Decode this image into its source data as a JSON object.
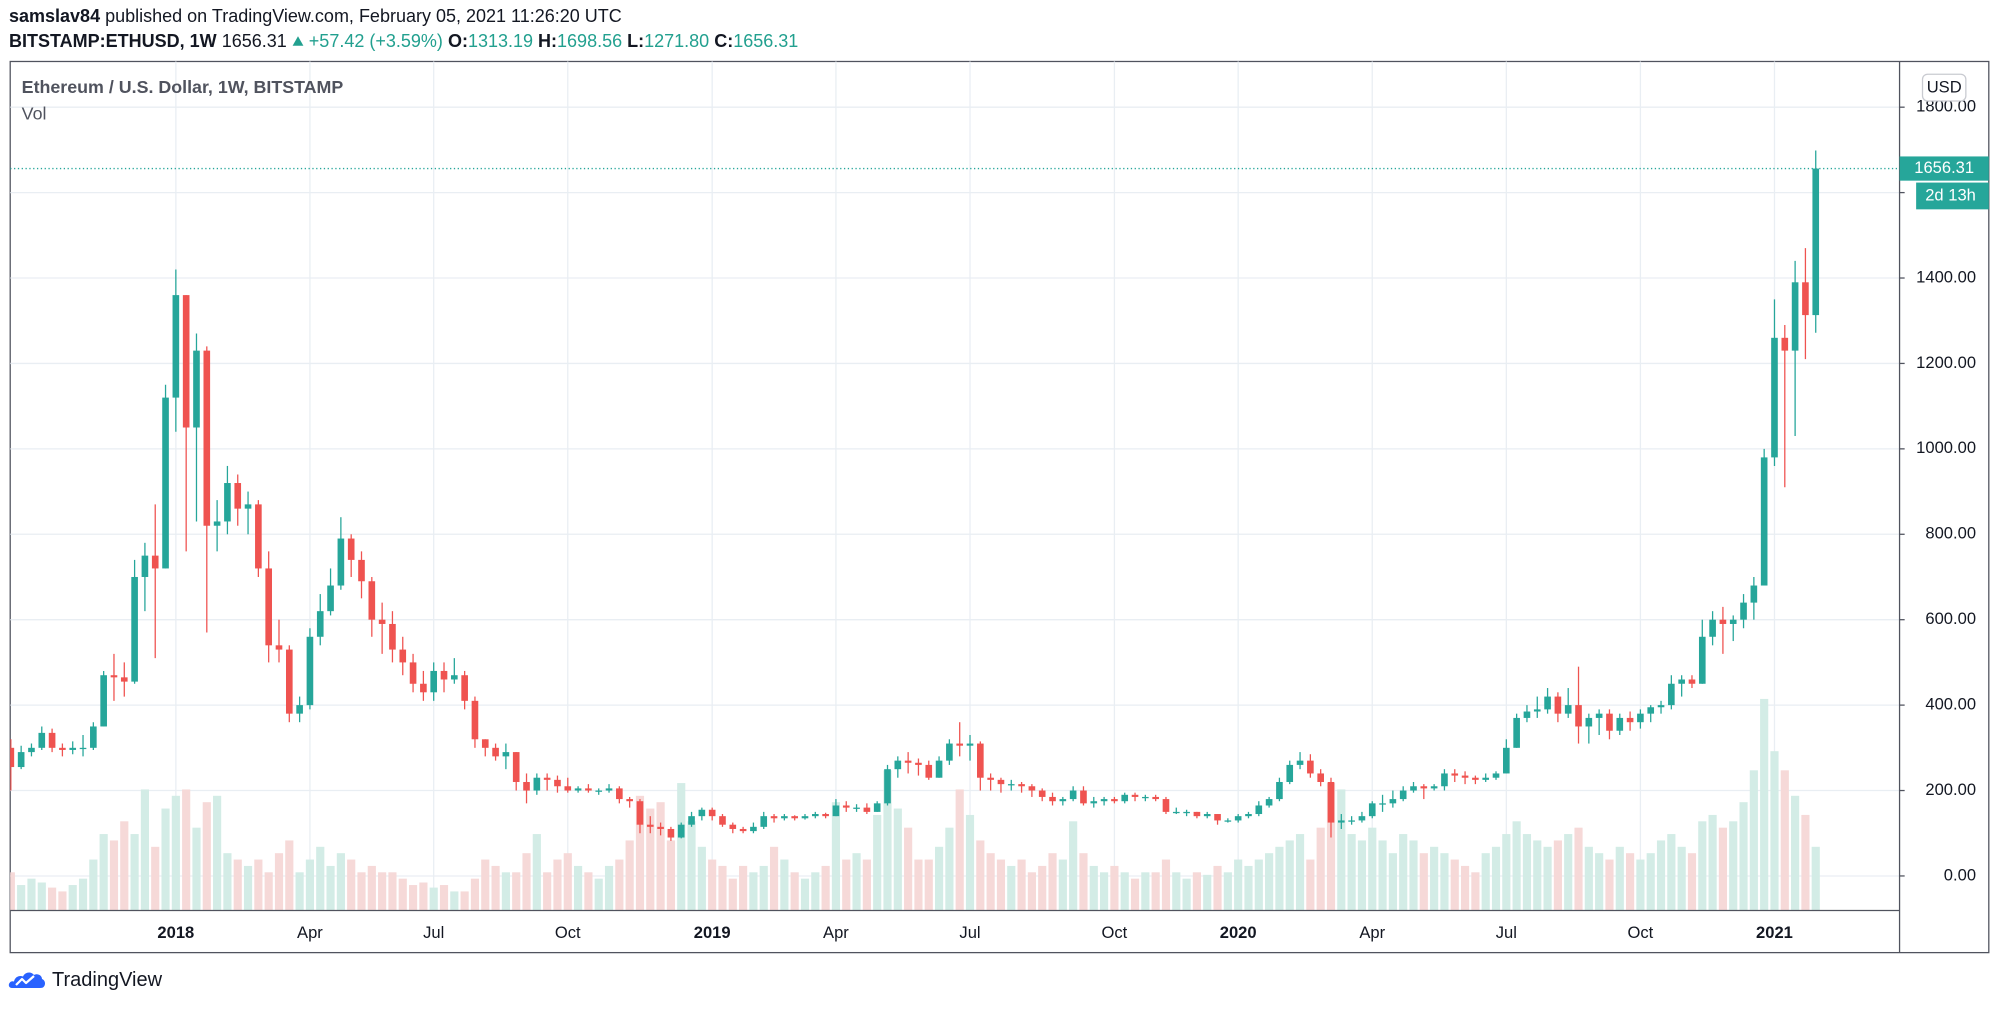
{
  "header": {
    "author": "samslav84",
    "published": "published on TradingView.com, February 05, 2021 11:26:20 UTC",
    "symbol": "BITSTAMP:ETHUSD, 1W",
    "last": "1656.31",
    "change": "+57.42",
    "change_pct": "(+3.59%)",
    "o_key": "O:",
    "o": "1313.19",
    "h_key": "H:",
    "h": "1698.56",
    "l_key": "L:",
    "l": "1271.80",
    "c_key": "C:",
    "c": "1656.31"
  },
  "footer": {
    "brand": "TradingView"
  },
  "chart_data": {
    "type": "candlestick",
    "title": "Ethereum / U.S. Dollar, 1W, BITSTAMP",
    "volume_label": "Vol",
    "currency": "USD",
    "last_price_label": "1656.31",
    "countdown": "2d 13h",
    "up_color": "#26a69a",
    "down_color": "#ef5350",
    "volume_up_color": "#d3ece6",
    "volume_down_color": "#f6d9d8",
    "grid": true,
    "ylim": [
      -81,
      1907
    ],
    "yticks": [
      {
        "value": 0,
        "label": "0.00"
      },
      {
        "value": 200,
        "label": "200.00"
      },
      {
        "value": 400,
        "label": "400.00"
      },
      {
        "value": 600,
        "label": "600.00"
      },
      {
        "value": 800,
        "label": "800.00"
      },
      {
        "value": 1000,
        "label": "1000.00"
      },
      {
        "value": 1200,
        "label": "1200.00"
      },
      {
        "value": 1400,
        "label": "1400.00"
      },
      {
        "value": 1600,
        "label": "1600.00"
      },
      {
        "value": 1800,
        "label": "1800.00"
      }
    ],
    "categories": [
      null,
      null,
      null,
      null,
      null,
      null,
      null,
      null,
      null,
      null,
      null,
      null,
      null,
      null,
      null,
      null,
      "2018",
      null,
      null,
      null,
      null,
      null,
      null,
      null,
      null,
      null,
      null,
      null,
      null,
      "Apr",
      null,
      null,
      null,
      null,
      null,
      null,
      null,
      null,
      null,
      null,
      null,
      "Jul",
      null,
      null,
      null,
      null,
      null,
      null,
      null,
      null,
      null,
      null,
      null,
      null,
      "Oct",
      null,
      null,
      null,
      null,
      null,
      null,
      null,
      null,
      null,
      null,
      null,
      null,
      null,
      "2019",
      null,
      null,
      null,
      null,
      null,
      null,
      null,
      null,
      null,
      null,
      null,
      "Apr",
      null,
      null,
      null,
      null,
      null,
      null,
      null,
      null,
      null,
      null,
      null,
      null,
      "Jul",
      null,
      null,
      null,
      null,
      null,
      null,
      null,
      null,
      null,
      null,
      null,
      null,
      null,
      "Oct",
      null,
      null,
      null,
      null,
      null,
      null,
      null,
      null,
      null,
      null,
      null,
      "2020",
      null,
      null,
      null,
      null,
      null,
      null,
      null,
      null,
      null,
      null,
      null,
      null,
      "Apr",
      null,
      null,
      null,
      null,
      null,
      null,
      null,
      null,
      null,
      null,
      null,
      null,
      "Jul",
      null,
      null,
      null,
      null,
      null,
      null,
      null,
      null,
      null,
      null,
      null,
      null,
      "Oct",
      null,
      null,
      null,
      null,
      null,
      null,
      null,
      null,
      null,
      null,
      null,
      null,
      "2021",
      null,
      null,
      null,
      null
    ],
    "ohlc": [
      [
        300,
        320,
        200,
        255
      ],
      [
        255,
        305,
        250,
        290
      ],
      [
        290,
        310,
        280,
        300
      ],
      [
        300,
        350,
        295,
        335
      ],
      [
        335,
        345,
        290,
        300
      ],
      [
        300,
        310,
        280,
        295
      ],
      [
        295,
        315,
        285,
        300
      ],
      [
        300,
        330,
        280,
        300
      ],
      [
        300,
        360,
        295,
        350
      ],
      [
        350,
        480,
        350,
        470
      ],
      [
        470,
        520,
        410,
        465
      ],
      [
        465,
        500,
        420,
        455
      ],
      [
        455,
        740,
        450,
        700
      ],
      [
        700,
        780,
        620,
        750
      ],
      [
        750,
        870,
        510,
        720
      ],
      [
        720,
        1150,
        720,
        1120
      ],
      [
        1120,
        1420,
        1040,
        1360
      ],
      [
        1360,
        1360,
        760,
        1050
      ],
      [
        1050,
        1270,
        830,
        1230
      ],
      [
        1230,
        1240,
        570,
        820
      ],
      [
        820,
        880,
        760,
        830
      ],
      [
        830,
        960,
        800,
        920
      ],
      [
        920,
        940,
        820,
        860
      ],
      [
        860,
        900,
        800,
        870
      ],
      [
        870,
        880,
        700,
        720
      ],
      [
        720,
        760,
        500,
        540
      ],
      [
        540,
        600,
        500,
        530
      ],
      [
        530,
        540,
        360,
        380
      ],
      [
        380,
        420,
        360,
        400
      ],
      [
        400,
        580,
        390,
        560
      ],
      [
        560,
        660,
        540,
        620
      ],
      [
        620,
        720,
        610,
        680
      ],
      [
        680,
        840,
        670,
        790
      ],
      [
        790,
        800,
        700,
        740
      ],
      [
        740,
        760,
        650,
        690
      ],
      [
        690,
        700,
        560,
        600
      ],
      [
        600,
        640,
        520,
        590
      ],
      [
        590,
        620,
        500,
        530
      ],
      [
        530,
        560,
        470,
        500
      ],
      [
        500,
        520,
        430,
        450
      ],
      [
        450,
        480,
        410,
        430
      ],
      [
        430,
        500,
        410,
        480
      ],
      [
        480,
        500,
        430,
        460
      ],
      [
        460,
        510,
        450,
        470
      ],
      [
        470,
        480,
        390,
        410
      ],
      [
        410,
        420,
        300,
        320
      ],
      [
        320,
        320,
        280,
        300
      ],
      [
        300,
        310,
        270,
        280
      ],
      [
        280,
        310,
        250,
        290
      ],
      [
        290,
        290,
        200,
        220
      ],
      [
        220,
        240,
        170,
        200
      ],
      [
        200,
        240,
        190,
        230
      ],
      [
        230,
        240,
        200,
        225
      ],
      [
        225,
        235,
        195,
        210
      ],
      [
        210,
        230,
        195,
        200
      ],
      [
        200,
        210,
        195,
        205
      ],
      [
        205,
        215,
        195,
        200
      ],
      [
        200,
        205,
        190,
        200
      ],
      [
        200,
        215,
        195,
        205
      ],
      [
        205,
        210,
        170,
        180
      ],
      [
        180,
        185,
        160,
        175
      ],
      [
        175,
        180,
        100,
        120
      ],
      [
        120,
        140,
        100,
        115
      ],
      [
        115,
        125,
        95,
        110
      ],
      [
        110,
        115,
        82,
        90
      ],
      [
        90,
        125,
        88,
        120
      ],
      [
        120,
        150,
        115,
        140
      ],
      [
        140,
        160,
        130,
        155
      ],
      [
        155,
        160,
        130,
        140
      ],
      [
        140,
        145,
        115,
        120
      ],
      [
        120,
        125,
        100,
        110
      ],
      [
        110,
        115,
        100,
        105
      ],
      [
        105,
        125,
        100,
        115
      ],
      [
        115,
        150,
        110,
        140
      ],
      [
        140,
        145,
        125,
        135
      ],
      [
        135,
        145,
        130,
        140
      ],
      [
        140,
        142,
        130,
        135
      ],
      [
        135,
        145,
        132,
        140
      ],
      [
        140,
        150,
        135,
        145
      ],
      [
        145,
        148,
        135,
        140
      ],
      [
        140,
        180,
        140,
        165
      ],
      [
        165,
        175,
        150,
        160
      ],
      [
        160,
        168,
        150,
        160
      ],
      [
        160,
        170,
        145,
        150
      ],
      [
        150,
        175,
        150,
        170
      ],
      [
        170,
        260,
        165,
        250
      ],
      [
        250,
        280,
        230,
        270
      ],
      [
        270,
        290,
        240,
        265
      ],
      [
        265,
        275,
        235,
        260
      ],
      [
        260,
        270,
        225,
        230
      ],
      [
        230,
        280,
        230,
        270
      ],
      [
        270,
        320,
        260,
        310
      ],
      [
        310,
        360,
        280,
        305
      ],
      [
        305,
        330,
        270,
        310
      ],
      [
        310,
        315,
        200,
        230
      ],
      [
        230,
        240,
        200,
        225
      ],
      [
        225,
        230,
        195,
        215
      ],
      [
        215,
        225,
        200,
        215
      ],
      [
        215,
        220,
        195,
        210
      ],
      [
        210,
        215,
        185,
        200
      ],
      [
        200,
        205,
        175,
        185
      ],
      [
        185,
        195,
        165,
        175
      ],
      [
        175,
        185,
        165,
        180
      ],
      [
        180,
        210,
        175,
        200
      ],
      [
        200,
        210,
        165,
        170
      ],
      [
        170,
        185,
        160,
        175
      ],
      [
        175,
        185,
        165,
        180
      ],
      [
        180,
        185,
        170,
        175
      ],
      [
        175,
        195,
        170,
        190
      ],
      [
        190,
        195,
        175,
        185
      ],
      [
        185,
        190,
        175,
        185
      ],
      [
        185,
        190,
        175,
        180
      ],
      [
        180,
        185,
        145,
        150
      ],
      [
        150,
        160,
        145,
        150
      ],
      [
        150,
        155,
        140,
        150
      ],
      [
        150,
        150,
        135,
        140
      ],
      [
        140,
        150,
        135,
        145
      ],
      [
        145,
        145,
        120,
        130
      ],
      [
        130,
        135,
        125,
        130
      ],
      [
        130,
        145,
        125,
        140
      ],
      [
        140,
        150,
        135,
        145
      ],
      [
        145,
        175,
        140,
        165
      ],
      [
        165,
        185,
        160,
        180
      ],
      [
        180,
        230,
        175,
        220
      ],
      [
        220,
        270,
        215,
        260
      ],
      [
        260,
        290,
        250,
        270
      ],
      [
        270,
        285,
        230,
        240
      ],
      [
        240,
        250,
        210,
        220
      ],
      [
        220,
        230,
        90,
        125
      ],
      [
        125,
        145,
        110,
        130
      ],
      [
        130,
        140,
        120,
        130
      ],
      [
        130,
        150,
        125,
        140
      ],
      [
        140,
        175,
        135,
        170
      ],
      [
        170,
        190,
        150,
        170
      ],
      [
        170,
        200,
        160,
        180
      ],
      [
        180,
        210,
        175,
        200
      ],
      [
        200,
        220,
        195,
        210
      ],
      [
        210,
        215,
        180,
        205
      ],
      [
        205,
        215,
        200,
        210
      ],
      [
        210,
        250,
        200,
        240
      ],
      [
        240,
        250,
        220,
        235
      ],
      [
        235,
        245,
        215,
        230
      ],
      [
        230,
        235,
        215,
        225
      ],
      [
        225,
        240,
        220,
        230
      ],
      [
        230,
        245,
        225,
        240
      ],
      [
        240,
        320,
        240,
        300
      ],
      [
        300,
        380,
        300,
        370
      ],
      [
        370,
        400,
        360,
        385
      ],
      [
        385,
        420,
        370,
        390
      ],
      [
        390,
        440,
        380,
        420
      ],
      [
        420,
        430,
        360,
        380
      ],
      [
        380,
        440,
        370,
        400
      ],
      [
        400,
        490,
        310,
        350
      ],
      [
        350,
        380,
        310,
        370
      ],
      [
        370,
        390,
        330,
        380
      ],
      [
        380,
        390,
        320,
        340
      ],
      [
        340,
        380,
        330,
        370
      ],
      [
        370,
        385,
        340,
        360
      ],
      [
        360,
        390,
        345,
        380
      ],
      [
        380,
        400,
        360,
        395
      ],
      [
        395,
        410,
        380,
        400
      ],
      [
        400,
        470,
        390,
        450
      ],
      [
        450,
        470,
        420,
        460
      ],
      [
        460,
        470,
        440,
        450
      ],
      [
        450,
        600,
        450,
        560
      ],
      [
        560,
        620,
        540,
        600
      ],
      [
        600,
        630,
        520,
        590
      ],
      [
        590,
        610,
        550,
        600
      ],
      [
        600,
        660,
        580,
        640
      ],
      [
        640,
        700,
        600,
        680
      ],
      [
        680,
        1000,
        680,
        980
      ],
      [
        980,
        1350,
        960,
        1260
      ],
      [
        1260,
        1290,
        910,
        1230
      ],
      [
        1230,
        1440,
        1030,
        1390
      ],
      [
        1390,
        1470,
        1210,
        1313.19
      ],
      [
        1313.19,
        1698.56,
        1271.8,
        1656.31
      ]
    ],
    "volume": [
      30,
      20,
      25,
      22,
      18,
      15,
      20,
      25,
      40,
      60,
      55,
      70,
      60,
      95,
      50,
      80,
      90,
      95,
      65,
      85,
      90,
      45,
      40,
      35,
      40,
      30,
      45,
      55,
      30,
      40,
      50,
      35,
      45,
      40,
      30,
      35,
      30,
      30,
      25,
      20,
      22,
      18,
      20,
      15,
      15,
      25,
      40,
      35,
      30,
      30,
      45,
      60,
      30,
      40,
      45,
      35,
      30,
      25,
      35,
      40,
      55,
      90,
      80,
      85,
      55,
      100,
      70,
      50,
      40,
      35,
      25,
      35,
      30,
      35,
      50,
      40,
      30,
      25,
      30,
      35,
      85,
      40,
      45,
      40,
      75,
      110,
      80,
      65,
      40,
      40,
      50,
      65,
      95,
      75,
      55,
      45,
      40,
      35,
      40,
      30,
      35,
      45,
      40,
      70,
      45,
      35,
      30,
      35,
      30,
      25,
      30,
      30,
      40,
      30,
      25,
      30,
      28,
      35,
      30,
      40,
      35,
      40,
      45,
      50,
      55,
      60,
      40,
      65,
      100,
      95,
      60,
      55,
      65,
      55,
      45,
      60,
      55,
      45,
      50,
      45,
      40,
      35,
      30,
      45,
      50,
      60,
      70,
      60,
      55,
      50,
      55,
      60,
      65,
      50,
      45,
      40,
      50,
      45,
      40,
      45,
      55,
      60,
      50,
      45,
      70,
      75,
      65,
      70,
      85,
      110,
      166,
      125,
      110,
      90,
      75,
      50
    ]
  }
}
